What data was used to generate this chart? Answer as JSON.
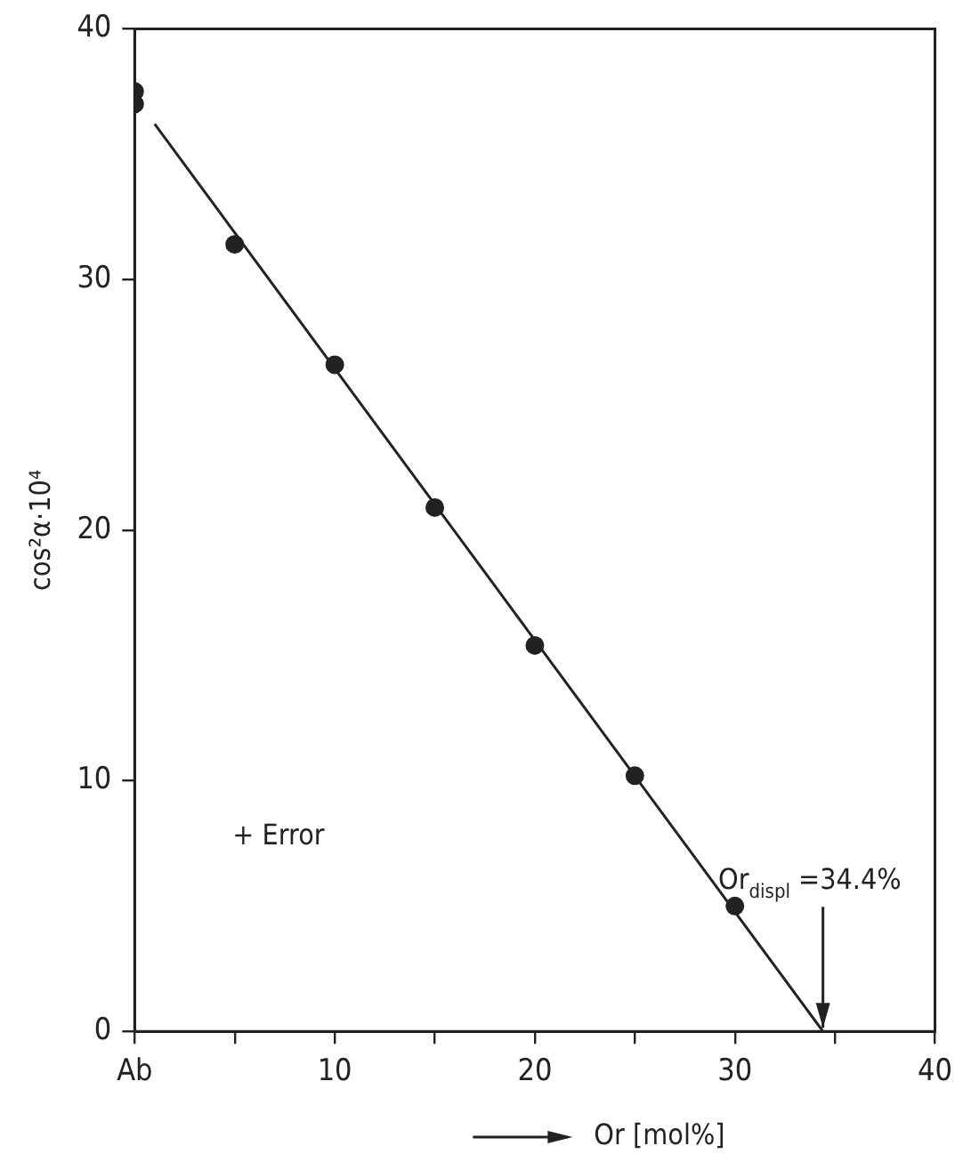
{
  "chart_data": {
    "type": "scatter",
    "xlabel": "Or [mol%]",
    "ylabel": "cos²α·10⁴",
    "xlim": [
      0,
      40
    ],
    "ylim": [
      0,
      40
    ],
    "xticks": [
      {
        "value": 0,
        "label": "Ab"
      },
      {
        "value": 5,
        "label": null
      },
      10,
      {
        "value": 15,
        "label": null
      },
      20,
      {
        "value": 25,
        "label": null
      },
      30,
      {
        "value": 35,
        "label": null
      },
      40
    ],
    "yticks": [
      0,
      10,
      20,
      30,
      40
    ],
    "grid": false,
    "legend": false,
    "marker": "circle",
    "series": [
      {
        "color": "#222222",
        "x": [
          0,
          0,
          5,
          10,
          15,
          20,
          25,
          30
        ],
        "values": [
          37.5,
          37.0,
          31.4,
          26.6,
          20.9,
          15.4,
          10.2,
          5.0
        ]
      },
      {
        "type": "line",
        "color": "#222222",
        "marker": "none",
        "line_style": "solid",
        "x": [
          1,
          34.4
        ],
        "values": [
          36.2,
          0
        ]
      }
    ],
    "annotations": [
      "+ Error",
      {
        "text": "Or$_{displ}$ =34.4%",
        "x": 34.4,
        "y": 0
      }
    ]
  }
}
